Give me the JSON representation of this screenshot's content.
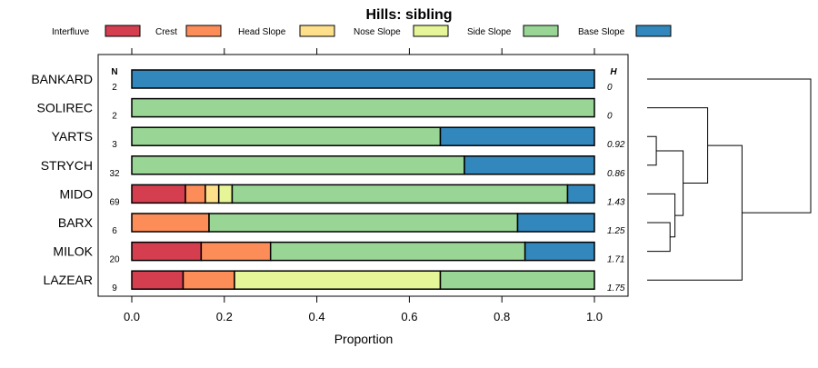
{
  "chart_data": {
    "type": "bar",
    "orientation": "horizontal-stacked",
    "title": "Hills: sibling",
    "xlabel": "Proportion",
    "xlim": [
      0,
      1
    ],
    "xticks": [
      "0.0",
      "0.2",
      "0.4",
      "0.6",
      "0.8",
      "1.0"
    ],
    "legend_position": "top",
    "n_header": "N",
    "h_header": "H",
    "series": [
      {
        "name": "Interfluve",
        "color": "#D53E4F"
      },
      {
        "name": "Crest",
        "color": "#FC8D59"
      },
      {
        "name": "Head Slope",
        "color": "#FEE08B"
      },
      {
        "name": "Nose Slope",
        "color": "#E6F598"
      },
      {
        "name": "Side Slope",
        "color": "#99D594"
      },
      {
        "name": "Base Slope",
        "color": "#3288BD"
      }
    ],
    "rows": [
      {
        "label": "BANKARD",
        "n": "2",
        "h": "0",
        "values": [
          0,
          0,
          0,
          0,
          0,
          1
        ]
      },
      {
        "label": "SOLIREC",
        "n": "2",
        "h": "0",
        "values": [
          0,
          0,
          0,
          0,
          1,
          0
        ]
      },
      {
        "label": "YARTS",
        "n": "3",
        "h": "0.92",
        "values": [
          0,
          0,
          0,
          0,
          0.667,
          0.333
        ]
      },
      {
        "label": "STRYCH",
        "n": "32",
        "h": "0.86",
        "values": [
          0,
          0,
          0,
          0,
          0.719,
          0.281
        ]
      },
      {
        "label": "MIDO",
        "n": "69",
        "h": "1.43",
        "values": [
          0.116,
          0.043,
          0.029,
          0.029,
          0.725,
          0.058
        ]
      },
      {
        "label": "BARX",
        "n": "6",
        "h": "1.25",
        "values": [
          0,
          0.167,
          0,
          0,
          0.667,
          0.166
        ]
      },
      {
        "label": "MILOK",
        "n": "20",
        "h": "1.71",
        "values": [
          0.15,
          0.15,
          0,
          0,
          0.55,
          0.15
        ]
      },
      {
        "label": "LAZEAR",
        "n": "9",
        "h": "1.75",
        "values": [
          0.111,
          0.111,
          0,
          0.445,
          0.333,
          0
        ]
      }
    ],
    "dendrogram": {
      "merges": [
        {
          "a": "YARTS",
          "b": "STRYCH",
          "height": 0.056,
          "id": "m1"
        },
        {
          "a": "BARX",
          "b": "MILOK",
          "height": 0.14,
          "id": "m2"
        },
        {
          "a": "MIDO",
          "b": "m2",
          "height": 0.17,
          "id": "m3"
        },
        {
          "a": "m1",
          "b": "m3",
          "height": 0.22,
          "id": "m4"
        },
        {
          "a": "SOLIREC",
          "b": "m4",
          "height": 0.37,
          "id": "m5"
        },
        {
          "a": "m5",
          "b": "LAZEAR",
          "height": 0.58,
          "id": "m6"
        },
        {
          "a": "BANKARD",
          "b": "m6",
          "height": 1.0,
          "id": "m7"
        }
      ]
    }
  }
}
